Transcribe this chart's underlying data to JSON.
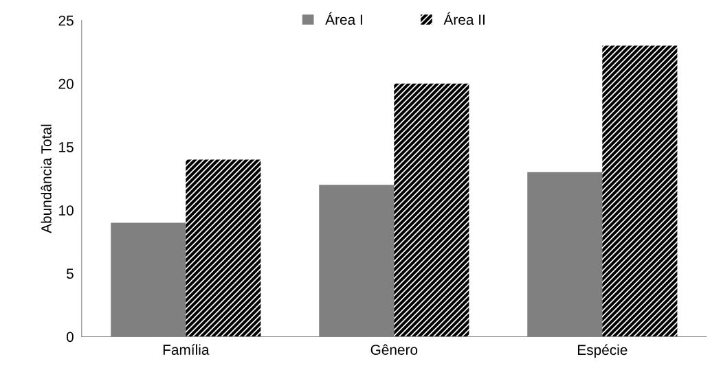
{
  "chart_data": {
    "type": "bar",
    "ylabel": "Abundância Total",
    "categories": [
      "Família",
      "Gênero",
      "Espécie"
    ],
    "series": [
      {
        "name": "Área I",
        "color": "#808080",
        "values": [
          9,
          12,
          13
        ]
      },
      {
        "name": "Área II",
        "color": "#000000",
        "values": [
          14,
          20,
          23
        ]
      }
    ],
    "ylim": [
      0,
      25
    ],
    "yticks": [
      0,
      5,
      10,
      15,
      20,
      25
    ],
    "grid": false,
    "legend": "top"
  }
}
